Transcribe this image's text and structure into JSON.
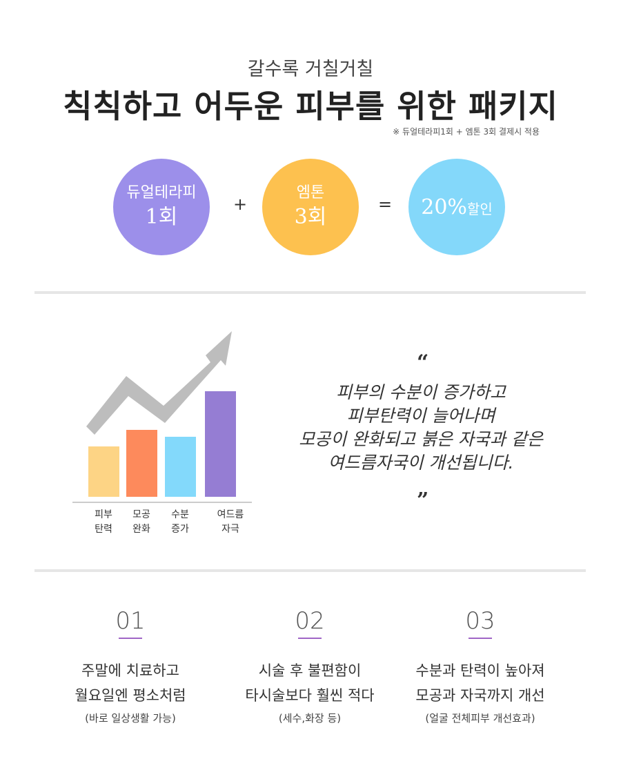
{
  "header": {
    "subtitle": "갈수록 거칠거칠",
    "title": "칙칙하고 어두운 피부를 위한 패키지",
    "note": "※ 듀얼테라피1회 + 엠톤 3회 결제시 적용"
  },
  "package": {
    "item1": {
      "line1": "듀얼테라피",
      "line2": "1회"
    },
    "plus": "+",
    "item2": {
      "line1": "엠톤",
      "line2": "3회"
    },
    "equals": "=",
    "result": {
      "big": "20%",
      "small": "할인"
    },
    "colors": {
      "item1": "#9c8fea",
      "item2": "#fdc14f",
      "result": "#84d8fa"
    }
  },
  "chart_data": {
    "type": "bar",
    "categories": [
      "피부\n탄력",
      "모공\n완화",
      "수분\n증가",
      "여드름\n자극"
    ],
    "category_lines": [
      [
        "피부",
        "탄력"
      ],
      [
        "모공",
        "완화"
      ],
      [
        "수분",
        "증가"
      ],
      [
        "여드름",
        "자극"
      ]
    ],
    "values": [
      73,
      97,
      87,
      153
    ],
    "colors": [
      "#fdd485",
      "#fd8a5c",
      "#83d9fb",
      "#957dd3"
    ],
    "ylim": [
      0,
      170
    ],
    "trend_arrow": true,
    "trend_color": "#bdbdbd"
  },
  "quote": {
    "open": "“",
    "lines": [
      "피부의 수분이 증가하고",
      "피부탄력이 늘어나며",
      "모공이 완화되고 붉은 자국과 같은",
      "여드름자국이 개선됩니다."
    ],
    "close": "”"
  },
  "features": [
    {
      "number": "01",
      "line1": "주말에 치료하고",
      "line2": "월요일엔 평소처럼",
      "sub": "(바로 일상생활 가능)"
    },
    {
      "number": "02",
      "line1": "시술 후 불편함이",
      "line2": "타시술보다 훨씬 적다",
      "sub": "(세수,화장 등)"
    },
    {
      "number": "03",
      "line1": "수분과 탄력이 높아져",
      "line2": "모공과 자국까지 개선",
      "sub": "(얼굴 전체피부 개선효과)"
    }
  ],
  "accent": "#9f65c6"
}
